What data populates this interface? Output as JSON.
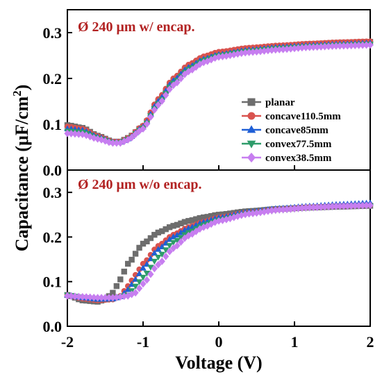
{
  "chart_data": {
    "type": "scatter",
    "x_axis": {
      "label": "Voltage (V)",
      "range": [
        -2,
        2
      ],
      "ticks": [
        "-2",
        "-1",
        "0",
        "1",
        "2"
      ]
    },
    "y_axis": {
      "label": "Capacitance (μF/cm²)",
      "label_main": "Capacitance (μF/cm",
      "label_sup": "2",
      "label_close": ")",
      "range": [
        0,
        0.35
      ],
      "ticks": [
        "0.0",
        "0.1",
        "0.2",
        "0.3"
      ]
    },
    "legend": {
      "placement": "right",
      "entries": [
        {
          "name": "planar",
          "color": "#6d6d6d",
          "marker": "square"
        },
        {
          "name": "concave110.5mm",
          "color": "#d9534f",
          "marker": "circle"
        },
        {
          "name": "concave85mm",
          "color": "#1f5fd6",
          "marker": "triangle-up"
        },
        {
          "name": "convex77.5mm",
          "color": "#2e9c6a",
          "marker": "triangle-down"
        },
        {
          "name": "convex38.5mm",
          "color": "#c77ef0",
          "marker": "diamond"
        }
      ]
    },
    "panels": [
      {
        "title": "Ø 240 μm w/ encap.",
        "series": [
          {
            "name": "planar",
            "points": [
              [
                -2.0,
                0.098
              ],
              [
                -1.8,
                0.092
              ],
              [
                -1.6,
                0.075
              ],
              [
                -1.4,
                0.062
              ],
              [
                -1.3,
                0.062
              ],
              [
                -1.2,
                0.07
              ],
              [
                -1.0,
                0.095
              ],
              [
                -0.8,
                0.15
              ],
              [
                -0.6,
                0.195
              ],
              [
                -0.4,
                0.225
              ],
              [
                -0.2,
                0.245
              ],
              [
                0.0,
                0.255
              ],
              [
                0.4,
                0.265
              ],
              [
                0.8,
                0.27
              ],
              [
                1.2,
                0.275
              ],
              [
                1.6,
                0.278
              ],
              [
                2.0,
                0.28
              ]
            ]
          },
          {
            "name": "concave110.5mm",
            "points": [
              [
                -2.0,
                0.095
              ],
              [
                -1.8,
                0.09
              ],
              [
                -1.6,
                0.074
              ],
              [
                -1.4,
                0.062
              ],
              [
                -1.3,
                0.062
              ],
              [
                -1.2,
                0.07
              ],
              [
                -1.0,
                0.097
              ],
              [
                -0.8,
                0.155
              ],
              [
                -0.6,
                0.2
              ],
              [
                -0.4,
                0.23
              ],
              [
                -0.2,
                0.248
              ],
              [
                0.0,
                0.258
              ],
              [
                0.4,
                0.267
              ],
              [
                0.8,
                0.272
              ],
              [
                1.2,
                0.276
              ],
              [
                1.6,
                0.279
              ],
              [
                2.0,
                0.281
              ]
            ]
          },
          {
            "name": "concave85mm",
            "points": [
              [
                -2.0,
                0.09
              ],
              [
                -1.8,
                0.087
              ],
              [
                -1.6,
                0.072
              ],
              [
                -1.4,
                0.061
              ],
              [
                -1.3,
                0.061
              ],
              [
                -1.2,
                0.068
              ],
              [
                -1.0,
                0.094
              ],
              [
                -0.8,
                0.15
              ],
              [
                -0.6,
                0.195
              ],
              [
                -0.4,
                0.224
              ],
              [
                -0.2,
                0.242
              ],
              [
                0.0,
                0.252
              ],
              [
                0.4,
                0.262
              ],
              [
                0.8,
                0.268
              ],
              [
                1.2,
                0.272
              ],
              [
                1.6,
                0.275
              ],
              [
                2.0,
                0.277
              ]
            ]
          },
          {
            "name": "convex77.5mm",
            "points": [
              [
                -2.0,
                0.085
              ],
              [
                -1.8,
                0.083
              ],
              [
                -1.6,
                0.07
              ],
              [
                -1.4,
                0.06
              ],
              [
                -1.3,
                0.06
              ],
              [
                -1.2,
                0.067
              ],
              [
                -1.0,
                0.092
              ],
              [
                -0.8,
                0.145
              ],
              [
                -0.6,
                0.19
              ],
              [
                -0.4,
                0.22
              ],
              [
                -0.2,
                0.239
              ],
              [
                0.0,
                0.25
              ],
              [
                0.4,
                0.26
              ],
              [
                0.8,
                0.266
              ],
              [
                1.2,
                0.27
              ],
              [
                1.6,
                0.273
              ],
              [
                2.0,
                0.275
              ]
            ]
          },
          {
            "name": "convex38.5mm",
            "points": [
              [
                -2.0,
                0.08
              ],
              [
                -1.8,
                0.078
              ],
              [
                -1.6,
                0.068
              ],
              [
                -1.4,
                0.059
              ],
              [
                -1.3,
                0.059
              ],
              [
                -1.2,
                0.066
              ],
              [
                -1.0,
                0.09
              ],
              [
                -0.8,
                0.142
              ],
              [
                -0.6,
                0.185
              ],
              [
                -0.4,
                0.215
              ],
              [
                -0.2,
                0.235
              ],
              [
                0.0,
                0.247
              ],
              [
                0.4,
                0.257
              ],
              [
                0.8,
                0.263
              ],
              [
                1.2,
                0.268
              ],
              [
                1.6,
                0.271
              ],
              [
                2.0,
                0.273
              ]
            ]
          }
        ]
      },
      {
        "title": "Ø 240 μm w/o encap.",
        "series": [
          {
            "name": "planar",
            "points": [
              [
                -2.0,
                0.07
              ],
              [
                -1.8,
                0.058
              ],
              [
                -1.6,
                0.055
              ],
              [
                -1.5,
                0.06
              ],
              [
                -1.4,
                0.075
              ],
              [
                -1.3,
                0.105
              ],
              [
                -1.2,
                0.14
              ],
              [
                -1.0,
                0.185
              ],
              [
                -0.8,
                0.21
              ],
              [
                -0.6,
                0.225
              ],
              [
                -0.4,
                0.236
              ],
              [
                -0.2,
                0.244
              ],
              [
                0.0,
                0.25
              ],
              [
                0.4,
                0.258
              ],
              [
                0.8,
                0.263
              ],
              [
                1.2,
                0.266
              ],
              [
                1.6,
                0.268
              ],
              [
                2.0,
                0.27
              ]
            ]
          },
          {
            "name": "concave110.5mm",
            "points": [
              [
                -2.0,
                0.07
              ],
              [
                -1.8,
                0.062
              ],
              [
                -1.6,
                0.058
              ],
              [
                -1.4,
                0.06
              ],
              [
                -1.3,
                0.068
              ],
              [
                -1.2,
                0.09
              ],
              [
                -1.1,
                0.115
              ],
              [
                -1.0,
                0.14
              ],
              [
                -0.8,
                0.18
              ],
              [
                -0.6,
                0.205
              ],
              [
                -0.4,
                0.222
              ],
              [
                -0.2,
                0.234
              ],
              [
                0.0,
                0.244
              ],
              [
                0.4,
                0.255
              ],
              [
                0.8,
                0.262
              ],
              [
                1.2,
                0.267
              ],
              [
                1.6,
                0.27
              ],
              [
                2.0,
                0.272
              ]
            ]
          },
          {
            "name": "concave85mm",
            "points": [
              [
                -2.0,
                0.07
              ],
              [
                -1.8,
                0.064
              ],
              [
                -1.6,
                0.06
              ],
              [
                -1.4,
                0.061
              ],
              [
                -1.3,
                0.066
              ],
              [
                -1.2,
                0.082
              ],
              [
                -1.1,
                0.105
              ],
              [
                -1.0,
                0.13
              ],
              [
                -0.8,
                0.172
              ],
              [
                -0.6,
                0.2
              ],
              [
                -0.4,
                0.219
              ],
              [
                -0.2,
                0.233
              ],
              [
                0.0,
                0.243
              ],
              [
                0.4,
                0.256
              ],
              [
                0.8,
                0.264
              ],
              [
                1.2,
                0.269
              ],
              [
                1.6,
                0.273
              ],
              [
                2.0,
                0.276
              ]
            ]
          },
          {
            "name": "convex77.5mm",
            "points": [
              [
                -2.0,
                0.07
              ],
              [
                -1.8,
                0.065
              ],
              [
                -1.6,
                0.062
              ],
              [
                -1.4,
                0.062
              ],
              [
                -1.2,
                0.07
              ],
              [
                -1.1,
                0.09
              ],
              [
                -1.0,
                0.11
              ],
              [
                -0.8,
                0.155
              ],
              [
                -0.6,
                0.188
              ],
              [
                -0.4,
                0.21
              ],
              [
                -0.2,
                0.227
              ],
              [
                0.0,
                0.238
              ],
              [
                0.4,
                0.252
              ],
              [
                0.8,
                0.26
              ],
              [
                1.2,
                0.265
              ],
              [
                1.6,
                0.268
              ],
              [
                2.0,
                0.27
              ]
            ]
          },
          {
            "name": "convex38.5mm",
            "points": [
              [
                -2.0,
                0.068
              ],
              [
                -1.8,
                0.066
              ],
              [
                -1.6,
                0.064
              ],
              [
                -1.4,
                0.064
              ],
              [
                -1.2,
                0.068
              ],
              [
                -1.1,
                0.075
              ],
              [
                -1.0,
                0.095
              ],
              [
                -0.8,
                0.138
              ],
              [
                -0.6,
                0.175
              ],
              [
                -0.4,
                0.203
              ],
              [
                -0.2,
                0.222
              ],
              [
                0.0,
                0.236
              ],
              [
                0.4,
                0.252
              ],
              [
                0.8,
                0.261
              ],
              [
                1.2,
                0.266
              ],
              [
                1.6,
                0.269
              ],
              [
                2.0,
                0.271
              ]
            ]
          }
        ]
      }
    ]
  }
}
